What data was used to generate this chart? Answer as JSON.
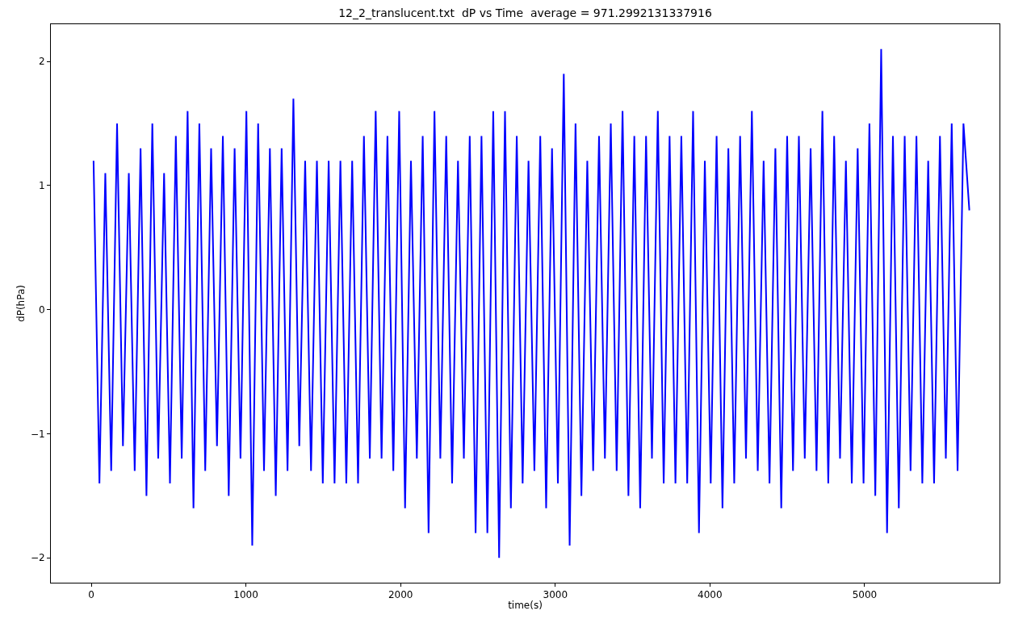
{
  "chart_data": {
    "type": "line",
    "title": "12_2_translucent.txt  dP vs Time  average = 971.2992131337916",
    "xlabel": "time(s)",
    "ylabel": "dP(hPa)",
    "x": [
      15,
      53,
      91,
      129,
      167,
      205,
      243,
      281,
      319,
      357,
      395,
      433,
      471,
      509,
      547,
      585,
      623,
      661,
      699,
      737,
      775,
      813,
      851,
      889,
      927,
      965,
      1003,
      1041,
      1079,
      1117,
      1155,
      1193,
      1231,
      1269,
      1307,
      1345,
      1383,
      1421,
      1459,
      1497,
      1535,
      1573,
      1611,
      1649,
      1687,
      1725,
      1763,
      1801,
      1839,
      1877,
      1915,
      1953,
      1991,
      2029,
      2067,
      2105,
      2143,
      2181,
      2219,
      2257,
      2295,
      2333,
      2371,
      2409,
      2447,
      2485,
      2523,
      2561,
      2599,
      2637,
      2675,
      2713,
      2751,
      2789,
      2827,
      2865,
      2903,
      2941,
      2979,
      3017,
      3055,
      3093,
      3131,
      3169,
      3207,
      3245,
      3283,
      3321,
      3359,
      3397,
      3435,
      3473,
      3511,
      3549,
      3587,
      3625,
      3663,
      3701,
      3739,
      3777,
      3815,
      3853,
      3891,
      3929,
      3967,
      4005,
      4043,
      4081,
      4119,
      4157,
      4195,
      4233,
      4271,
      4309,
      4347,
      4385,
      4423,
      4461,
      4499,
      4537,
      4575,
      4613,
      4651,
      4689,
      4727,
      4765,
      4803,
      4841,
      4879,
      4917,
      4955,
      4993,
      5031,
      5069,
      5107,
      5145,
      5183,
      5221,
      5259,
      5297,
      5335,
      5373,
      5411,
      5449,
      5487,
      5525,
      5563,
      5601,
      5639,
      5677
    ],
    "series": [
      {
        "color": "#0000ff",
        "values": [
          1.2,
          -1.4,
          1.1,
          -1.3,
          1.5,
          -1.1,
          1.1,
          -1.3,
          1.3,
          -1.5,
          1.5,
          -1.2,
          1.1,
          -1.4,
          1.4,
          -1.2,
          1.6,
          -1.6,
          1.5,
          -1.3,
          1.3,
          -1.1,
          1.4,
          -1.5,
          1.3,
          -1.2,
          1.6,
          -1.9,
          1.5,
          -1.3,
          1.3,
          -1.5,
          1.3,
          -1.3,
          1.7,
          -1.1,
          1.2,
          -1.3,
          1.2,
          -1.4,
          1.2,
          -1.4,
          1.2,
          -1.4,
          1.2,
          -1.4,
          1.4,
          -1.2,
          1.6,
          -1.2,
          1.4,
          -1.3,
          1.6,
          -1.6,
          1.2,
          -1.2,
          1.4,
          -1.8,
          1.6,
          -1.2,
          1.4,
          -1.4,
          1.2,
          -1.2,
          1.4,
          -1.8,
          1.4,
          -1.8,
          1.6,
          -2.0,
          1.6,
          -1.6,
          1.4,
          -1.4,
          1.2,
          -1.3,
          1.4,
          -1.6,
          1.3,
          -1.4,
          1.9,
          -1.9,
          1.5,
          -1.5,
          1.2,
          -1.3,
          1.4,
          -1.2,
          1.5,
          -1.3,
          1.6,
          -1.5,
          1.4,
          -1.6,
          1.4,
          -1.2,
          1.6,
          -1.4,
          1.4,
          -1.4,
          1.4,
          -1.4,
          1.6,
          -1.8,
          1.2,
          -1.4,
          1.4,
          -1.6,
          1.3,
          -1.4,
          1.4,
          -1.2,
          1.6,
          -1.3,
          1.2,
          -1.4,
          1.3,
          -1.6,
          1.4,
          -1.3,
          1.4,
          -1.2,
          1.3,
          -1.3,
          1.6,
          -1.4,
          1.4,
          -1.2,
          1.2,
          -1.4,
          1.3,
          -1.4,
          1.5,
          -1.5,
          2.1,
          -1.8,
          1.4,
          -1.6,
          1.4,
          -1.3,
          1.4,
          -1.4,
          1.2,
          -1.4,
          1.4,
          -1.2,
          1.5,
          -1.3,
          1.5,
          0.8
        ]
      }
    ],
    "xlim": [
      -261,
      5872
    ],
    "ylim": [
      -2.2,
      2.3
    ],
    "xticks": [
      0,
      1000,
      2000,
      3000,
      4000,
      5000
    ],
    "yticks": [
      -2,
      -1,
      0,
      1,
      2
    ],
    "marker": "none",
    "line_style": "solid",
    "legend": false
  }
}
